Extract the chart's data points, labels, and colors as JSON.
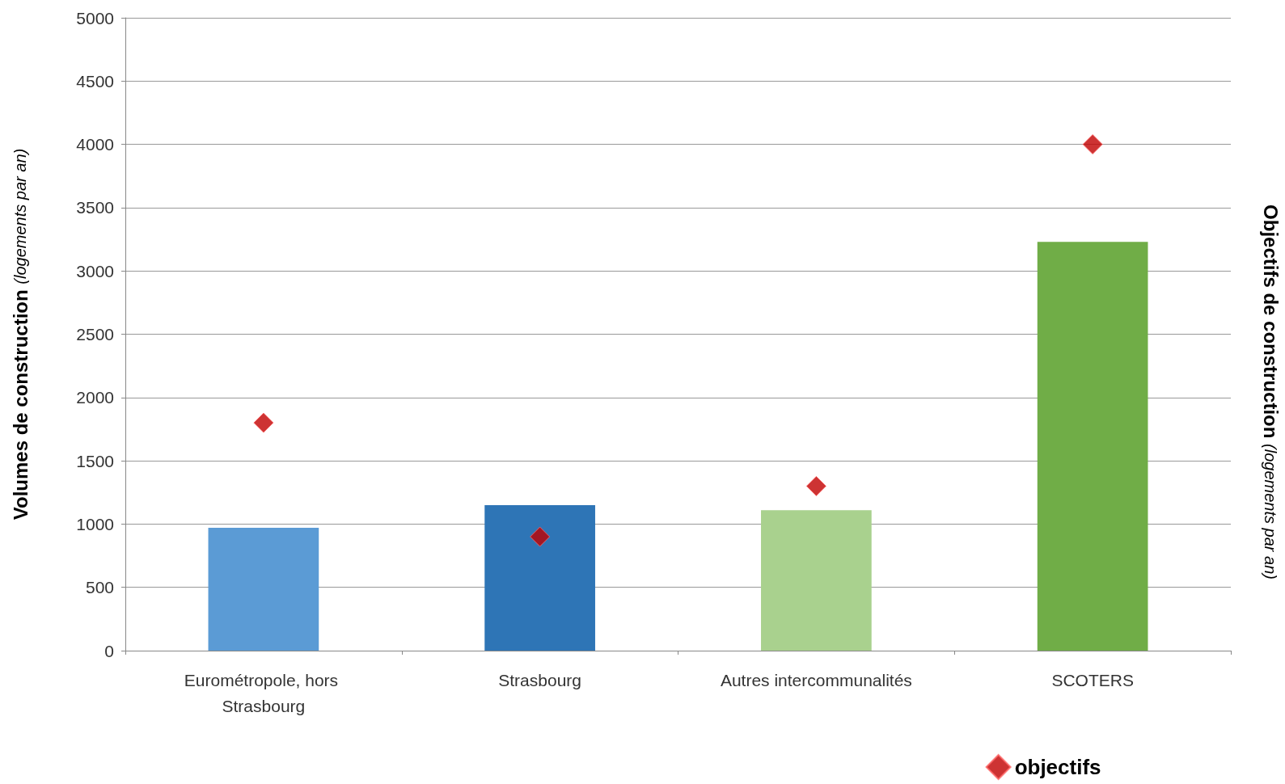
{
  "chart_data": {
    "type": "bar",
    "ylabel": "Volumes de construction (logements par an)",
    "y2label": "Objectifs de construction (logements par an)",
    "categories": [
      "Eurométropole, hors Strasbourg",
      "Strasbourg",
      "Autres intercommunalités",
      "SCOTERS"
    ],
    "series": [
      {
        "colors": [
          "#5b9bd5",
          "#2e75b6",
          "#a9d18e",
          "#70ad47"
        ],
        "values": [
          970,
          1150,
          1110,
          3230
        ]
      },
      {
        "type": "scatter",
        "name": "objectifs",
        "color": "#c00000",
        "marker": "diamond",
        "values": [
          1800,
          900,
          1300,
          4000
        ]
      }
    ],
    "ylim": [
      0,
      5000
    ],
    "yticks": [
      0,
      500,
      1000,
      1500,
      2000,
      2500,
      3000,
      3500,
      4000,
      4500,
      5000
    ],
    "grid": "y",
    "legend": "bottom right"
  }
}
